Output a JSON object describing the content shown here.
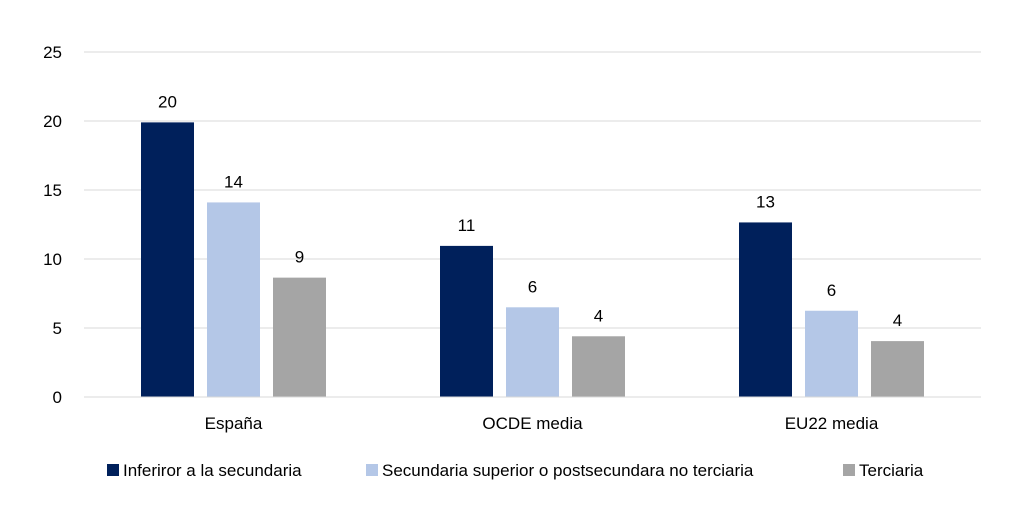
{
  "chart_data": {
    "type": "bar",
    "categories": [
      "España",
      "OCDE media",
      "EU22 media"
    ],
    "series": [
      {
        "name": "Inferiror a la secundaria",
        "values": [
          20,
          11,
          13
        ],
        "color": "#00205b"
      },
      {
        "name": "Secundaria superior o postsecundara no terciaria",
        "values": [
          14,
          6,
          6
        ],
        "color": "#b4c7e7"
      },
      {
        "name": "Terciaria",
        "values": [
          9,
          4,
          4
        ],
        "color": "#a5a5a5"
      }
    ],
    "bar_heights": [
      [
        19.9,
        10.95,
        12.65
      ],
      [
        14.1,
        6.5,
        6.25
      ],
      [
        8.65,
        4.4,
        4.05
      ]
    ],
    "yticks": [
      0,
      5,
      10,
      15,
      20,
      25
    ],
    "ylim": [
      0,
      25
    ],
    "grid": true,
    "legend_position": "bottom",
    "title": "",
    "xlabel": "",
    "ylabel": ""
  }
}
